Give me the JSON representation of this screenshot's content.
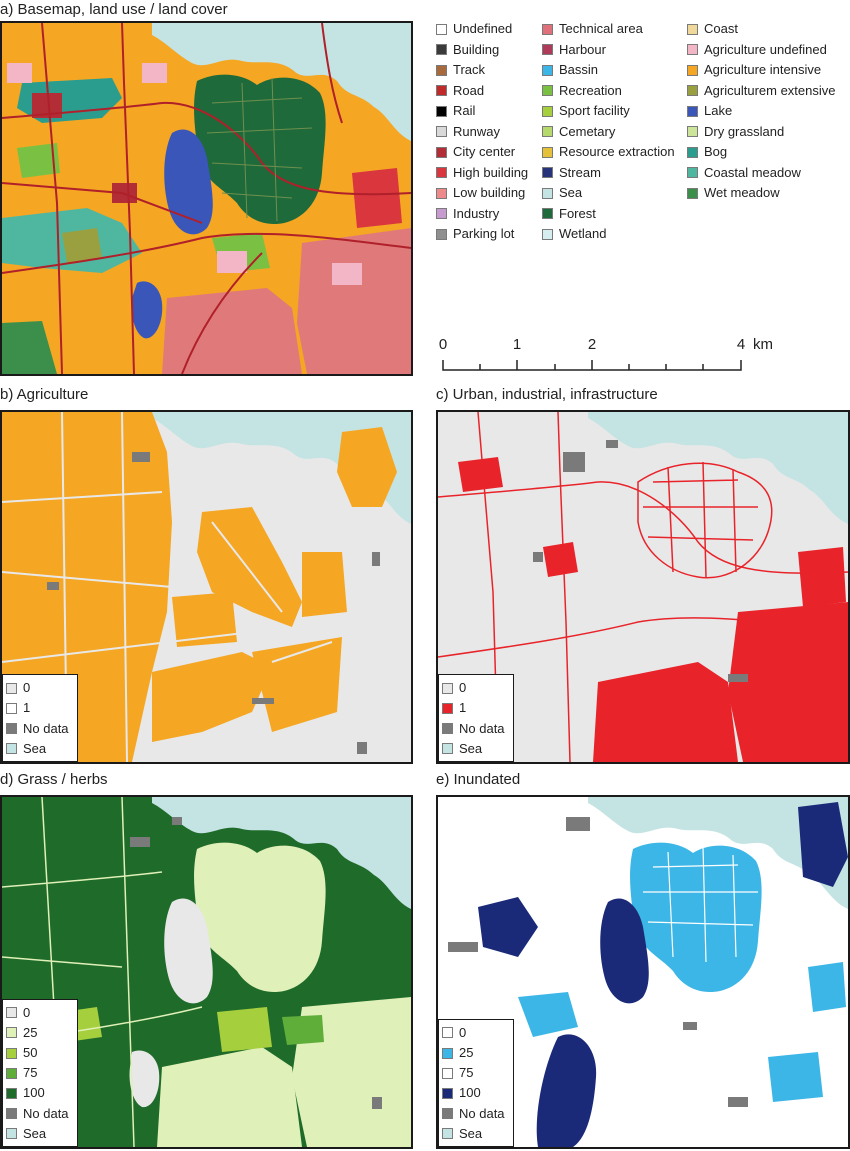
{
  "panels": {
    "a": {
      "title": "a) Basemap, land use / land cover"
    },
    "b": {
      "title": "b) Agriculture"
    },
    "c": {
      "title": "c) Urban, industrial, infrastructure"
    },
    "d": {
      "title": "d) Grass / herbs"
    },
    "e": {
      "title": "e) Inundated"
    }
  },
  "legend_landcover": [
    [
      {
        "label": "Undefined",
        "color": "#ffffff"
      },
      {
        "label": "Building",
        "color": "#3a3a3a"
      },
      {
        "label": "Track",
        "color": "#a86a3c"
      },
      {
        "label": "Road",
        "color": "#c02a2a"
      },
      {
        "label": "Rail",
        "color": "#000000"
      },
      {
        "label": "Runway",
        "color": "#d9d9d9"
      },
      {
        "label": "City center",
        "color": "#b22d35"
      },
      {
        "label": "High building",
        "color": "#d9363e"
      },
      {
        "label": "Low building",
        "color": "#ef8a8a"
      },
      {
        "label": "Industry",
        "color": "#c79ad0"
      },
      {
        "label": "Parking lot",
        "color": "#8f8f8f"
      }
    ],
    [
      {
        "label": "Technical area",
        "color": "#e0707a"
      },
      {
        "label": "Harbour",
        "color": "#b03a5a"
      },
      {
        "label": "Bassin",
        "color": "#3cb6e6"
      },
      {
        "label": "Recreation",
        "color": "#7ac143"
      },
      {
        "label": "Sport facility",
        "color": "#a6cf3d"
      },
      {
        "label": "Cemetary",
        "color": "#b5d96a"
      },
      {
        "label": "Resource extraction",
        "color": "#e5c13a"
      },
      {
        "label": "Stream",
        "color": "#27337a"
      },
      {
        "label": "Sea",
        "color": "#c4e3e3"
      },
      {
        "label": "Forest",
        "color": "#1e6a3a"
      },
      {
        "label": "Wetland",
        "color": "#d6eef0"
      }
    ],
    [
      {
        "label": "Coast",
        "color": "#f0d79a"
      },
      {
        "label": "Agriculture undefined",
        "color": "#f2b6c6"
      },
      {
        "label": "Agriculture intensive",
        "color": "#f5a623"
      },
      {
        "label": "Agriculturem extensive",
        "color": "#9aa040"
      },
      {
        "label": "Lake",
        "color": "#3a56b8"
      },
      {
        "label": "Dry grassland",
        "color": "#cde59a"
      },
      {
        "label": "Bog",
        "color": "#2a9d8f"
      },
      {
        "label": "Coastal meadow",
        "color": "#4fb7a0"
      },
      {
        "label": "Wet meadow",
        "color": "#3b8f4a"
      }
    ]
  ],
  "scale_bar": {
    "ticks": [
      "0",
      "1",
      "2",
      "4"
    ],
    "unit": "km"
  },
  "legend_b": [
    {
      "label": "0",
      "color": "#e8e8e8"
    },
    {
      "label": "1",
      "color": "#ffffff"
    },
    {
      "label": "No data",
      "color": "#7a7a7a"
    },
    {
      "label": "Sea",
      "color": "#c4e3e3"
    }
  ],
  "legend_c": [
    {
      "label": "0",
      "color": "#e8e8e8"
    },
    {
      "label": "1",
      "color": "#e8242a"
    },
    {
      "label": "No data",
      "color": "#7a7a7a"
    },
    {
      "label": "Sea",
      "color": "#c4e3e3"
    }
  ],
  "legend_d": [
    {
      "label": "0",
      "color": "#e8e8e8"
    },
    {
      "label": "25",
      "color": "#dff0b8"
    },
    {
      "label": "50",
      "color": "#a6cf3d"
    },
    {
      "label": "75",
      "color": "#5fae3a"
    },
    {
      "label": "100",
      "color": "#1f6b2a"
    },
    {
      "label": "No data",
      "color": "#7a7a7a"
    },
    {
      "label": "Sea",
      "color": "#c4e3e3"
    }
  ],
  "legend_e": [
    {
      "label": "0",
      "color": "#ffffff"
    },
    {
      "label": "25",
      "color": "#3cb6e6"
    },
    {
      "label": "75",
      "color": "#ffffff"
    },
    {
      "label": "100",
      "color": "#1b2a78"
    },
    {
      "label": "No data",
      "color": "#7a7a7a"
    },
    {
      "label": "Sea",
      "color": "#c4e3e3"
    }
  ],
  "colors": {
    "sea": "#c4e3e3",
    "agriculture": "#f5a623",
    "urban": "#e8242a",
    "urban_fabric": "#e07a7a",
    "forest": "#1e6a3a",
    "lake": "#3a56b8",
    "grass_100": "#1f6b2a",
    "grass_25": "#dff0b8",
    "grass_50": "#a6cf3d",
    "inundated_25": "#3cb6e6",
    "inundated_100": "#1b2a78",
    "background_zero": "#e8e8e8",
    "nodata": "#7a7a7a"
  }
}
